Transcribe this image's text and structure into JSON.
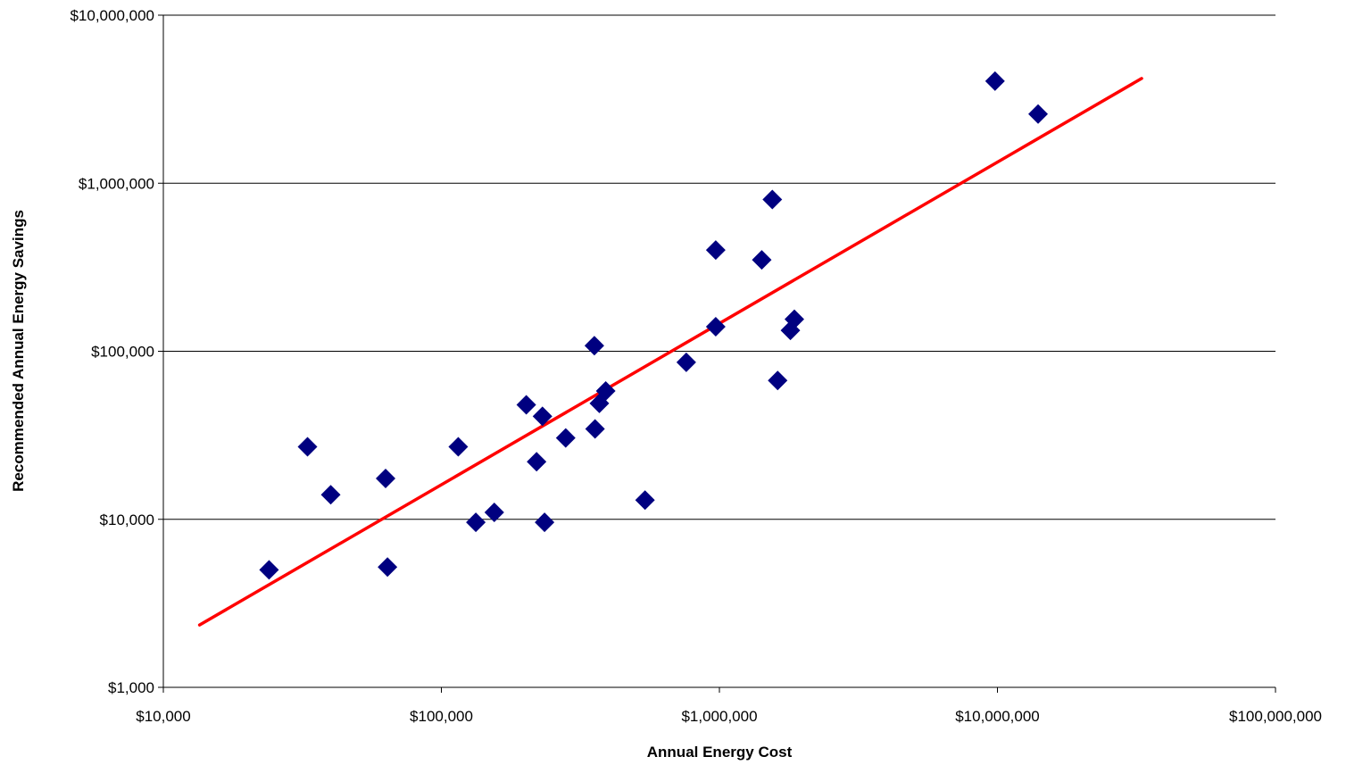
{
  "chart_data": {
    "type": "scatter",
    "xlabel": "Annual Energy Cost",
    "ylabel": "Recommended Annual Energy Savings",
    "x_scale": "log",
    "y_scale": "log",
    "xlim": [
      10000,
      100000000
    ],
    "ylim": [
      1000,
      10000000
    ],
    "x_ticks": [
      {
        "value": 10000,
        "label": "$10,000"
      },
      {
        "value": 100000,
        "label": "$100,000"
      },
      {
        "value": 1000000,
        "label": "$1,000,000"
      },
      {
        "value": 10000000,
        "label": "$10,000,000"
      },
      {
        "value": 100000000,
        "label": "$100,000,000"
      }
    ],
    "y_ticks": [
      {
        "value": 1000,
        "label": "$1,000"
      },
      {
        "value": 10000,
        "label": "$10,000"
      },
      {
        "value": 100000,
        "label": "$100,000"
      },
      {
        "value": 1000000,
        "label": "$1,000,000"
      },
      {
        "value": 10000000,
        "label": "$10,000,000"
      }
    ],
    "grid": "horizontal",
    "marker_color": "#000080",
    "trend_color": "#ff0000",
    "points": [
      {
        "x": 24000,
        "y": 5000
      },
      {
        "x": 33000,
        "y": 27000
      },
      {
        "x": 40000,
        "y": 14000
      },
      {
        "x": 63000,
        "y": 17500
      },
      {
        "x": 64000,
        "y": 5200
      },
      {
        "x": 115000,
        "y": 27000
      },
      {
        "x": 133000,
        "y": 9600
      },
      {
        "x": 155000,
        "y": 11000
      },
      {
        "x": 202000,
        "y": 48000
      },
      {
        "x": 220000,
        "y": 22000
      },
      {
        "x": 231000,
        "y": 41000
      },
      {
        "x": 235000,
        "y": 9600
      },
      {
        "x": 280000,
        "y": 30500
      },
      {
        "x": 355000,
        "y": 108000
      },
      {
        "x": 357000,
        "y": 34500
      },
      {
        "x": 370000,
        "y": 49000
      },
      {
        "x": 390000,
        "y": 58000
      },
      {
        "x": 540000,
        "y": 13000
      },
      {
        "x": 760000,
        "y": 86000
      },
      {
        "x": 970000,
        "y": 400000
      },
      {
        "x": 970000,
        "y": 140000
      },
      {
        "x": 1420000,
        "y": 350000
      },
      {
        "x": 1550000,
        "y": 800000
      },
      {
        "x": 1620000,
        "y": 67000
      },
      {
        "x": 1800000,
        "y": 133000
      },
      {
        "x": 1860000,
        "y": 155000
      },
      {
        "x": 9800000,
        "y": 4050000
      },
      {
        "x": 14000000,
        "y": 2580000
      }
    ],
    "trendline": {
      "x": [
        13500,
        33000000
      ],
      "y": [
        2350,
        4200000
      ]
    }
  }
}
